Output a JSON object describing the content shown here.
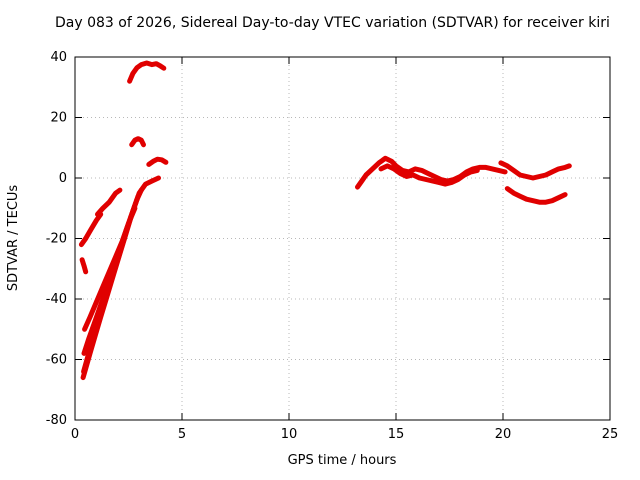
{
  "title": "Day 083 of 2026, Sidereal Day-to-day VTEC variation (SDTVAR) for receiver kiri",
  "colors": {
    "accent": "#e00000",
    "grid": "#b8b8b8",
    "axis": "#000000",
    "background": "#ffffff"
  },
  "chart_data": {
    "type": "scatter",
    "title": "Day 083 of 2026, Sidereal Day-to-day VTEC variation (SDTVAR) for receiver kiri",
    "xlabel": "GPS time / hours",
    "ylabel": "SDTVAR / TECUs",
    "xlim": [
      0,
      25
    ],
    "ylim": [
      -80,
      40
    ],
    "xticks": [
      0,
      5,
      10,
      15,
      20,
      25
    ],
    "yticks": [
      -80,
      -60,
      -40,
      -20,
      0,
      20,
      40
    ],
    "grid": true,
    "legend": "none",
    "point_color": "#e00000",
    "series": [
      {
        "name": "rise-1",
        "points": [
          [
            0.38,
            -66
          ],
          [
            0.5,
            -63
          ],
          [
            0.7,
            -58
          ],
          [
            0.95,
            -52
          ],
          [
            1.2,
            -46
          ],
          [
            1.5,
            -39
          ],
          [
            1.8,
            -32
          ],
          [
            2.1,
            -25
          ],
          [
            2.4,
            -18
          ],
          [
            2.7,
            -11
          ],
          [
            3.0,
            -5
          ],
          [
            3.3,
            -2
          ],
          [
            3.6,
            -1
          ],
          [
            3.9,
            0
          ]
        ]
      },
      {
        "name": "rise-2",
        "points": [
          [
            0.4,
            -64
          ],
          [
            0.6,
            -59
          ],
          [
            0.85,
            -53
          ],
          [
            1.1,
            -47
          ],
          [
            1.4,
            -40
          ],
          [
            1.7,
            -33
          ],
          [
            2.0,
            -27
          ],
          [
            2.3,
            -20
          ],
          [
            2.6,
            -13
          ],
          [
            2.9,
            -7
          ],
          [
            3.1,
            -4
          ]
        ]
      },
      {
        "name": "rise-3",
        "points": [
          [
            0.42,
            -58
          ],
          [
            0.65,
            -53
          ],
          [
            0.9,
            -48
          ],
          [
            1.2,
            -42
          ],
          [
            1.5,
            -36
          ],
          [
            1.8,
            -30
          ],
          [
            2.1,
            -24
          ],
          [
            2.4,
            -17
          ],
          [
            2.7,
            -11
          ],
          [
            2.95,
            -6
          ]
        ]
      },
      {
        "name": "rise-4",
        "points": [
          [
            0.45,
            -50
          ],
          [
            0.7,
            -46
          ],
          [
            1.0,
            -41
          ],
          [
            1.3,
            -36
          ],
          [
            1.6,
            -31
          ],
          [
            1.9,
            -26
          ],
          [
            2.2,
            -21
          ],
          [
            2.5,
            -15
          ],
          [
            2.8,
            -10
          ]
        ]
      },
      {
        "name": "diag-upper",
        "points": [
          [
            0.3,
            -22
          ],
          [
            0.5,
            -20
          ],
          [
            0.75,
            -17
          ],
          [
            1.0,
            -14
          ],
          [
            1.2,
            -12
          ]
        ]
      },
      {
        "name": "diag-upper-2",
        "points": [
          [
            1.05,
            -12
          ],
          [
            1.3,
            -10
          ],
          [
            1.6,
            -8
          ],
          [
            1.9,
            -5
          ],
          [
            2.1,
            -4
          ]
        ]
      },
      {
        "name": "blob-left",
        "points": [
          [
            0.33,
            -27
          ],
          [
            0.42,
            -29
          ],
          [
            0.5,
            -31
          ]
        ]
      },
      {
        "name": "top-arc",
        "points": [
          [
            2.55,
            32
          ],
          [
            2.7,
            34.5
          ],
          [
            2.9,
            36.5
          ],
          [
            3.1,
            37.5
          ],
          [
            3.35,
            38
          ],
          [
            3.6,
            37.5
          ],
          [
            3.8,
            37.8
          ],
          [
            4.0,
            37
          ],
          [
            4.15,
            36.3
          ]
        ]
      },
      {
        "name": "mid-arc",
        "points": [
          [
            2.65,
            11
          ],
          [
            2.8,
            12.5
          ],
          [
            2.95,
            13
          ],
          [
            3.1,
            12.5
          ],
          [
            3.2,
            11
          ]
        ]
      },
      {
        "name": "small-arc",
        "points": [
          [
            3.45,
            4.5
          ],
          [
            3.65,
            5.5
          ],
          [
            3.85,
            6.2
          ],
          [
            4.05,
            6
          ],
          [
            4.25,
            5.2
          ]
        ]
      },
      {
        "name": "band-1",
        "points": [
          [
            13.2,
            -3
          ],
          [
            13.4,
            -1
          ],
          [
            13.6,
            1
          ],
          [
            13.9,
            3
          ],
          [
            14.2,
            5
          ],
          [
            14.5,
            6.5
          ],
          [
            14.8,
            5.5
          ],
          [
            15.0,
            4
          ],
          [
            15.3,
            2.5
          ],
          [
            15.6,
            2
          ],
          [
            15.9,
            3
          ],
          [
            16.2,
            2.5
          ],
          [
            16.5,
            1.5
          ],
          [
            16.8,
            0.5
          ],
          [
            17.1,
            -0.5
          ],
          [
            17.4,
            -1
          ],
          [
            17.7,
            -0.5
          ],
          [
            18.0,
            0.5
          ],
          [
            18.3,
            2
          ],
          [
            18.6,
            3
          ],
          [
            18.9,
            3.5
          ],
          [
            19.2,
            3.5
          ],
          [
            19.5,
            3
          ],
          [
            19.8,
            2.5
          ],
          [
            20.1,
            2
          ]
        ]
      },
      {
        "name": "band-2",
        "points": [
          [
            14.3,
            3
          ],
          [
            14.6,
            4
          ],
          [
            14.9,
            3
          ],
          [
            15.2,
            1.5
          ],
          [
            15.5,
            0.5
          ],
          [
            15.8,
            1
          ],
          [
            16.1,
            0
          ],
          [
            16.4,
            -0.5
          ],
          [
            16.7,
            -1
          ],
          [
            17.0,
            -1.5
          ],
          [
            17.3,
            -2
          ],
          [
            17.6,
            -1.5
          ],
          [
            17.9,
            -0.5
          ],
          [
            18.2,
            1
          ],
          [
            18.5,
            2
          ],
          [
            18.8,
            2.5
          ]
        ]
      },
      {
        "name": "band-3",
        "points": [
          [
            19.9,
            5
          ],
          [
            20.2,
            4
          ],
          [
            20.5,
            2.5
          ],
          [
            20.8,
            1
          ],
          [
            21.1,
            0.5
          ],
          [
            21.4,
            0
          ],
          [
            21.7,
            0.5
          ],
          [
            22.0,
            1
          ],
          [
            22.3,
            2
          ],
          [
            22.6,
            3
          ],
          [
            22.9,
            3.5
          ],
          [
            23.1,
            4
          ]
        ]
      },
      {
        "name": "band-dip",
        "points": [
          [
            20.2,
            -3.5
          ],
          [
            20.5,
            -5
          ],
          [
            20.8,
            -6
          ],
          [
            21.1,
            -7
          ],
          [
            21.4,
            -7.5
          ],
          [
            21.7,
            -8
          ],
          [
            22.0,
            -8
          ],
          [
            22.3,
            -7.5
          ],
          [
            22.6,
            -6.5
          ],
          [
            22.9,
            -5.5
          ]
        ]
      }
    ]
  }
}
